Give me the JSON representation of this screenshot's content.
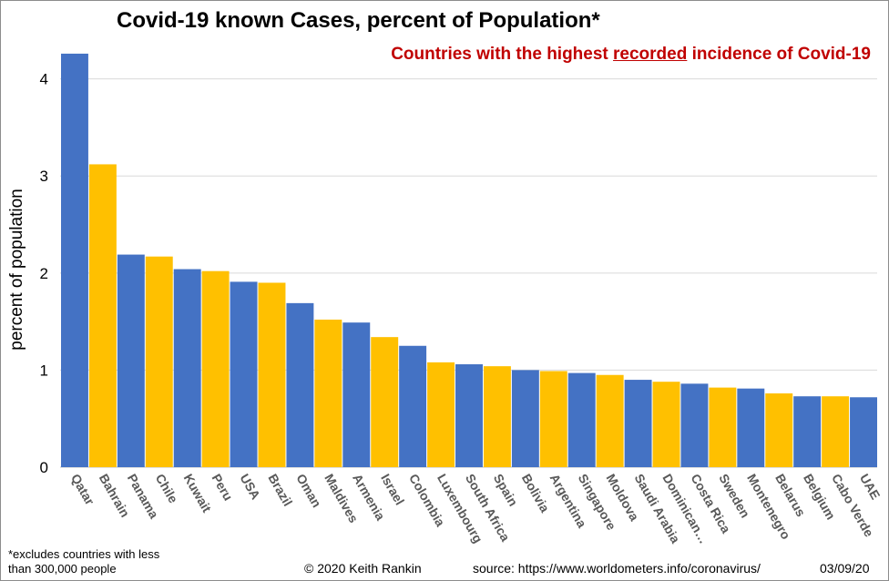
{
  "chart_data": {
    "type": "bar",
    "title": "Covid-19 known Cases, percent of Population*",
    "subtitle": {
      "before": "Countries with  the highest ",
      "underlined": "recorded",
      "after": " incidence of Covid-19"
    },
    "ylabel": "percent of population",
    "xlabel": "",
    "ylim": [
      0,
      4.4
    ],
    "yticks": [
      "0",
      "1",
      "2",
      "3",
      "4"
    ],
    "grid": true,
    "categories": [
      "Qatar",
      "Bahrain",
      "Panama",
      "Chile",
      "Kuwait",
      "Peru",
      "USA",
      "Brazil",
      "Oman",
      "Maldives",
      "Armenia",
      "Israel",
      "Colombia",
      "Luxembourg",
      "South Africa",
      "Spain",
      "Bolivia",
      "Argentina",
      "Singapore",
      "Moldova",
      "Saudi Arabia",
      "Dominican…",
      "Costa Rica",
      "Sweden",
      "Montenegro",
      "Belarus",
      "Belgium",
      "Cabo Verde",
      "UAE"
    ],
    "values": [
      4.26,
      3.12,
      2.19,
      2.17,
      2.04,
      2.02,
      1.91,
      1.9,
      1.69,
      1.52,
      1.49,
      1.34,
      1.25,
      1.08,
      1.06,
      1.04,
      1.0,
      0.99,
      0.97,
      0.95,
      0.9,
      0.88,
      0.86,
      0.82,
      0.81,
      0.76,
      0.73,
      0.73,
      0.72
    ],
    "colors": [
      "#4472c4",
      "#ffc000"
    ]
  },
  "footnote": "*excludes  countries with  less than 300,000 people",
  "credit": "© 2020  Keith Rankin",
  "source": "source: https://www.worldometers.info/coronavirus/",
  "date": "03/09/20"
}
